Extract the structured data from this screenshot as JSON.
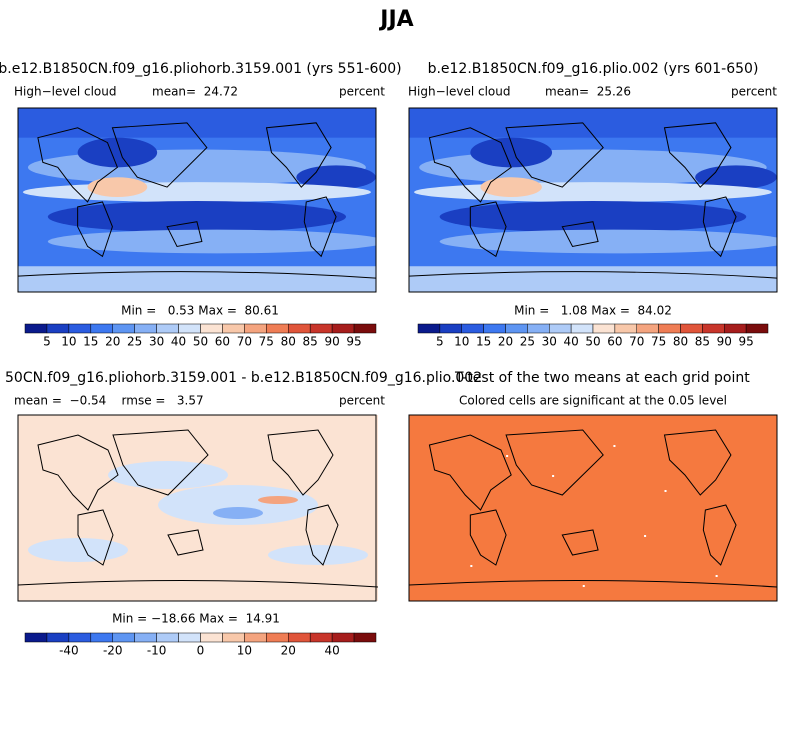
{
  "title": "JJA",
  "panels": [
    {
      "title": "b.e12.B1850CN.f09_g16.pliohorb.3159.001 (yrs 551-600)",
      "left": "High−level cloud",
      "center": "mean=  24.72",
      "right": "percent",
      "stats": "Min =   0.53 Max =  80.61",
      "colorbar": {
        "labels": [
          5,
          10,
          15,
          20,
          25,
          30,
          40,
          50,
          60,
          70,
          75,
          80,
          85,
          90,
          95
        ],
        "colors": [
          "#0a1a8c",
          "#1a3fc2",
          "#2b5ce0",
          "#3d78f0",
          "#5e95f2",
          "#86b0f5",
          "#aecbf7",
          "#d2e3fa",
          "#fbe3d3",
          "#f8c8aa",
          "#f4a47f",
          "#ef7d55",
          "#e0553a",
          "#c8352a",
          "#a61d1c",
          "#7a0c0c"
        ]
      }
    },
    {
      "title": "b.e12.B1850CN.f09_g16.plio.002 (yrs 601-650)",
      "left": "High−level cloud",
      "center": "mean=  25.26",
      "right": "percent",
      "stats": "Min =   1.08 Max =  84.02",
      "colorbar": {
        "labels": [
          5,
          10,
          15,
          20,
          25,
          30,
          40,
          50,
          60,
          70,
          75,
          80,
          85,
          90,
          95
        ],
        "colors": [
          "#0a1a8c",
          "#1a3fc2",
          "#2b5ce0",
          "#3d78f0",
          "#5e95f2",
          "#86b0f5",
          "#aecbf7",
          "#d2e3fa",
          "#fbe3d3",
          "#f8c8aa",
          "#f4a47f",
          "#ef7d55",
          "#e0553a",
          "#c8352a",
          "#a61d1c",
          "#7a0c0c"
        ]
      }
    },
    {
      "title": "50CN.f09_g16.pliohorb.3159.001 - b.e12.B1850CN.f09_g16.plio.002",
      "left": "mean =  −0.54    rmse =   3.57",
      "right": "percent",
      "stats": "Min = −18.66 Max =  14.91",
      "colorbar": {
        "labels": [
          null,
          -40,
          null,
          -20,
          null,
          -10,
          null,
          0,
          null,
          10,
          null,
          20,
          null,
          40,
          null
        ],
        "colors": [
          "#0a1a8c",
          "#1a3fc2",
          "#2b5ce0",
          "#3d78f0",
          "#5e95f2",
          "#86b0f5",
          "#aecbf7",
          "#d2e3fa",
          "#fbe3d3",
          "#f8c8aa",
          "#f4a47f",
          "#ef7d55",
          "#e0553a",
          "#c8352a",
          "#a61d1c",
          "#7a0c0c"
        ]
      }
    },
    {
      "title": "T-test of the two means at each grid point",
      "subtitle": "Colored cells are significant at the 0.05 level"
    }
  ]
}
